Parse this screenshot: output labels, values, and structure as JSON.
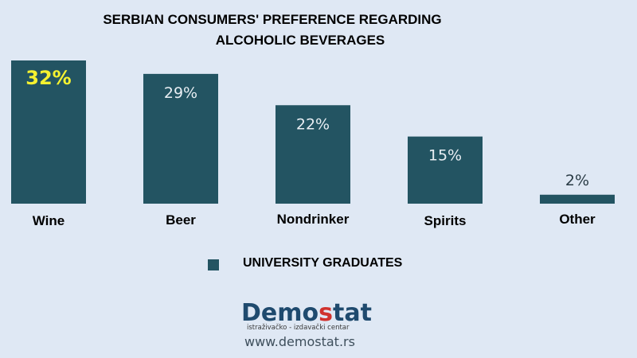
{
  "chart_data": {
    "type": "bar",
    "title_lines": [
      "SERBIAN CONSUMERS' PREFERENCE REGARDING",
      "ALCOHOLIC BEVERAGES"
    ],
    "categories": [
      "Wine",
      "Beer",
      "Nondrinker",
      "Spirits",
      "Other"
    ],
    "series": [
      {
        "name": "UNIVERSITY GRADUATES",
        "values": [
          32,
          29,
          22,
          15,
          2
        ],
        "labels": [
          "32%",
          "29%",
          "22%",
          "15%",
          "2%"
        ],
        "color": "#235462"
      }
    ],
    "ylim": [
      0,
      32
    ],
    "grid": false,
    "legend_position": "bottom",
    "highlight_color": "#f5f230",
    "highlight_index": 0
  },
  "branding": {
    "logo_prefix": "Demo",
    "logo_accent": "s",
    "logo_suffix": "tat",
    "logo_tagline": "istraživačko - izdavački centar",
    "url": "www.demostat.rs",
    "logo_color": "#1f4a6e",
    "accent_color": "#d0322e"
  }
}
